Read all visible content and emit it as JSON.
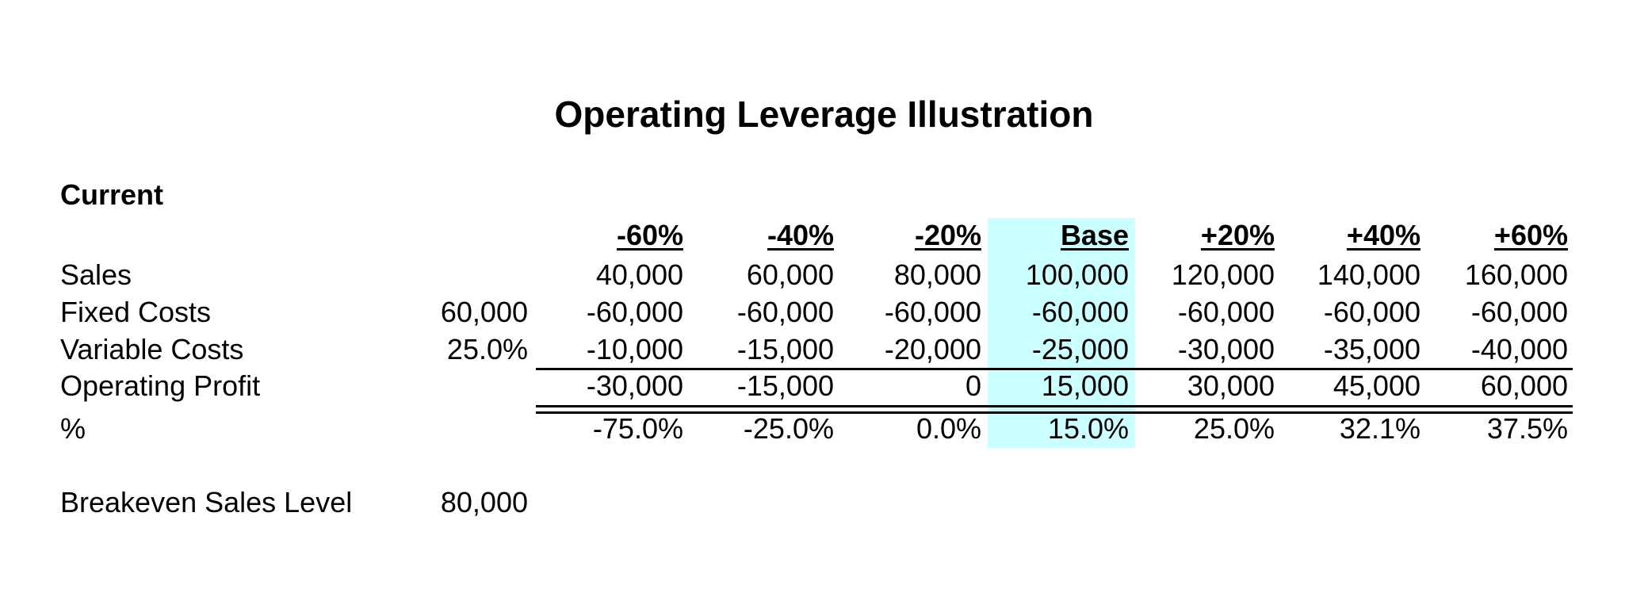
{
  "title": "Operating Leverage Illustration",
  "section": "Current",
  "highlight_color": "#ccffff",
  "columns": [
    "-60%",
    "-40%",
    "-20%",
    "Base",
    "+20%",
    "+40%",
    "+60%"
  ],
  "rows": {
    "sales": {
      "label": "Sales",
      "input": "",
      "values": [
        "40,000",
        "60,000",
        "80,000",
        "100,000",
        "120,000",
        "140,000",
        "160,000"
      ]
    },
    "fixed_costs": {
      "label": "Fixed Costs",
      "input": "60,000",
      "values": [
        "-60,000",
        "-60,000",
        "-60,000",
        "-60,000",
        "-60,000",
        "-60,000",
        "-60,000"
      ]
    },
    "variable_costs": {
      "label": "Variable Costs",
      "input": "25.0%",
      "values": [
        "-10,000",
        "-15,000",
        "-20,000",
        "-25,000",
        "-30,000",
        "-35,000",
        "-40,000"
      ]
    },
    "operating_profit": {
      "label": "Operating Profit",
      "input": "",
      "values": [
        "-30,000",
        "-15,000",
        "0",
        "15,000",
        "30,000",
        "45,000",
        "60,000"
      ]
    },
    "percent": {
      "label": "%",
      "input": "",
      "values": [
        "-75.0%",
        "-25.0%",
        "0.0%",
        "15.0%",
        "25.0%",
        "32.1%",
        "37.5%"
      ]
    }
  },
  "breakeven": {
    "label": "Breakeven Sales Level",
    "value": "80,000"
  }
}
